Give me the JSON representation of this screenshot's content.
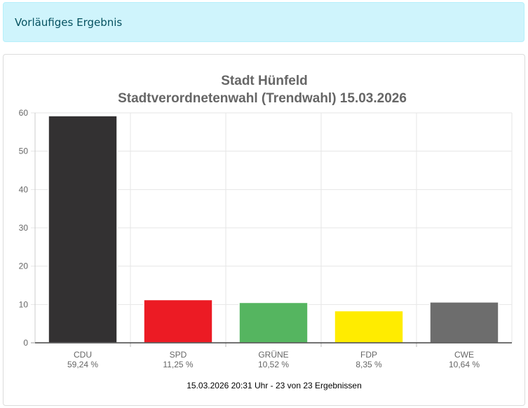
{
  "alert": {
    "text": "Vorläufiges Ergebnis"
  },
  "colors": {
    "alert_bg": "#cff4fc",
    "alert_text": "#055160"
  },
  "chart_data": {
    "type": "bar",
    "title": [
      "Stadt Hünfeld",
      "Stadtverordnetenwahl (Trendwahl) 15.03.2026"
    ],
    "categories": [
      "CDU",
      "SPD",
      "GRÜNE",
      "FDP",
      "CWE"
    ],
    "values": [
      59.24,
      11.25,
      10.52,
      8.35,
      10.64
    ],
    "value_labels": [
      "59,24 %",
      "11,25 %",
      "10,52 %",
      "8,35 %",
      "10,64 %"
    ],
    "colors": [
      "#333132",
      "#ec1b24",
      "#55b560",
      "#ffec00",
      "#6d6d6d"
    ],
    "ylim": [
      0,
      60
    ],
    "yticks": [
      0,
      10,
      20,
      30,
      40,
      50,
      60
    ],
    "grid": true,
    "footer": "15.03.2026 20:31 Uhr - 23 von 23 Ergebnissen"
  }
}
